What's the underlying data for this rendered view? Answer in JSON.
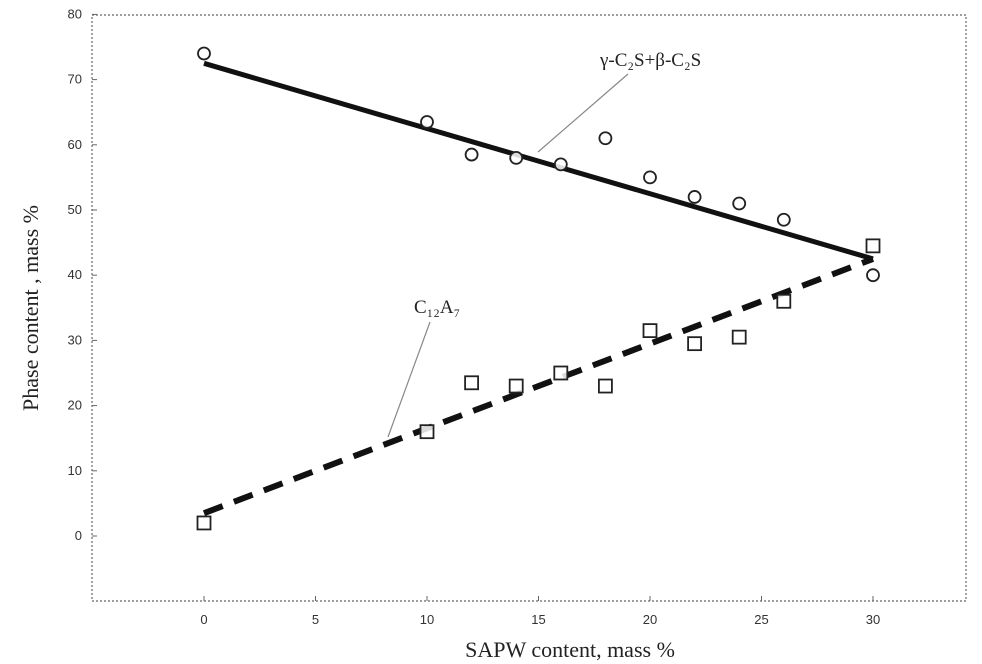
{
  "chart_data": {
    "type": "scatter",
    "xlabel": "SAPW content, mass %",
    "ylabel": "Phase content , mass %",
    "xlim": [
      -5,
      35
    ],
    "ylim": [
      -10,
      80
    ],
    "xticks": [
      0,
      5,
      10,
      15,
      20,
      25,
      30
    ],
    "yticks": [
      0,
      10,
      20,
      30,
      40,
      50,
      60,
      70,
      80
    ],
    "grid": false,
    "annotations": [
      "γ-C₂S+β-C₂S",
      "C₁₂A₇"
    ],
    "series": [
      {
        "marker": "circle",
        "x": [
          0,
          10,
          12,
          14,
          16,
          18,
          20,
          22,
          24,
          26,
          30
        ],
        "y": [
          74,
          63.5,
          58.5,
          58,
          57,
          61,
          55,
          52,
          51,
          48.5,
          40
        ],
        "fit": {
          "style": "solid",
          "x": [
            0,
            30
          ],
          "y": [
            72.5,
            42.5
          ]
        }
      },
      {
        "marker": "square",
        "x": [
          0,
          10,
          12,
          14,
          16,
          18,
          20,
          22,
          24,
          26,
          30
        ],
        "y": [
          2,
          16,
          23.5,
          23,
          25,
          23,
          31.5,
          29.5,
          30.5,
          36,
          44.5
        ],
        "fit": {
          "style": "dashed",
          "x": [
            0,
            30
          ],
          "y": [
            3.5,
            42.5
          ]
        }
      }
    ]
  }
}
